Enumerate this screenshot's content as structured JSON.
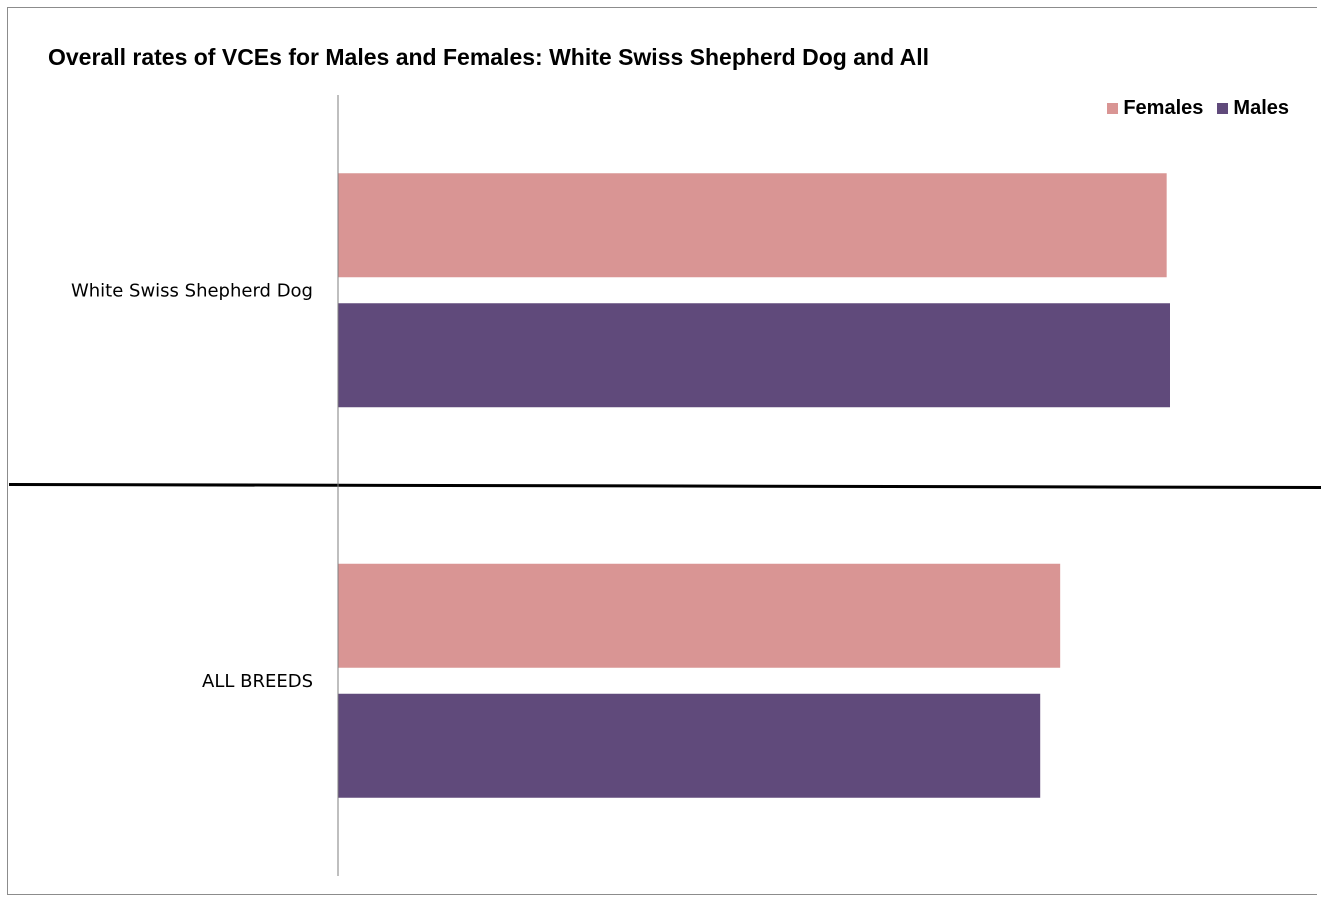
{
  "chart_data": {
    "type": "bar",
    "orientation": "horizontal",
    "title": "Overall rates of VCEs for Males and Females: White Swiss Shepherd Dog and All",
    "categories": [
      "White Swiss Shepherd Dog",
      "ALL BREEDS"
    ],
    "series": [
      {
        "name": "Females",
        "color": "#d99594",
        "values": [
          0.996,
          0.868
        ]
      },
      {
        "name": "Males",
        "color": "#604a7b",
        "values": [
          1.0,
          0.844
        ]
      }
    ],
    "xlim": [
      0,
      1.2
    ],
    "xlabel": "",
    "ylabel": "",
    "grid": false,
    "legend": "top-right",
    "category_separator": true,
    "x_tick_labels_visible": false
  }
}
